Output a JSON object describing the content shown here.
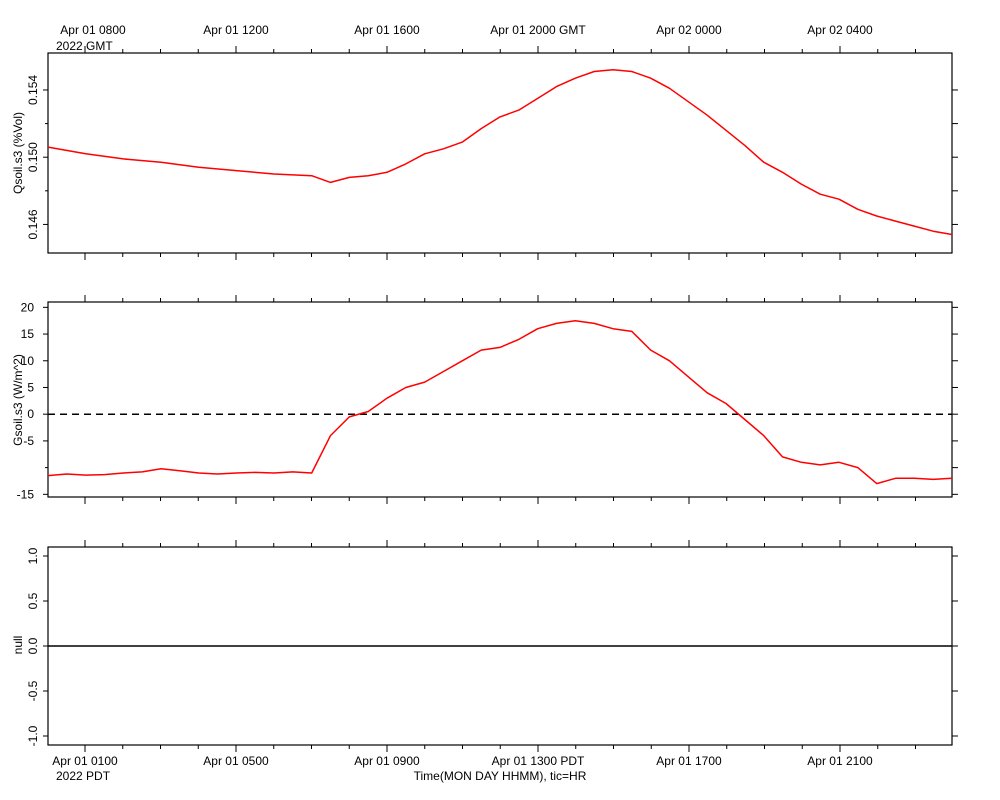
{
  "top_axis": {
    "tick_labels": [
      "Apr 01 0800",
      "Apr 01 1200",
      "Apr 01 1600",
      "Apr 01 2000 GMT",
      "Apr 02 0000",
      "Apr 02 0400"
    ],
    "year_label": "2022 GMT"
  },
  "bottom_axis": {
    "tick_labels": [
      "Apr 01 0100",
      "Apr 01 0500",
      "Apr 01 0900",
      "Apr 01 1300 PDT",
      "Apr 01 1700",
      "Apr 01 2100"
    ],
    "year_label": "2022 PDT",
    "title": "Time(MON DAY HHMM), tic=HR"
  },
  "colors": {
    "series": "#ff0000",
    "axis": "#000000"
  },
  "chart_data": [
    {
      "type": "line",
      "ylabel": "Qsoil.s3 (%Vol)",
      "ylim": [
        0.1443,
        0.1562
      ],
      "yticks": [
        0.146,
        0.15,
        0.154
      ],
      "ytick_labels": [
        "0.146",
        "0.150",
        "0.154"
      ],
      "xlim": [
        0,
        24
      ],
      "x_unit": "hours since Apr 01 0000 PDT",
      "series": [
        {
          "x": [
            0,
            1,
            2,
            3,
            4,
            5,
            6,
            7,
            7.5,
            8,
            8.5,
            9,
            9.5,
            10,
            10.5,
            11,
            11.5,
            12,
            12.5,
            13,
            13.5,
            14,
            14.5,
            15,
            15.5,
            16,
            16.5,
            17,
            17.5,
            18,
            18.5,
            19,
            19.5,
            20,
            20.5,
            21,
            21.5,
            22,
            22.5,
            23,
            23.5,
            24
          ],
          "values": [
            0.1506,
            0.1502,
            0.1499,
            0.1497,
            0.1494,
            0.1492,
            0.149,
            0.1489,
            0.1485,
            0.1488,
            0.1489,
            0.1491,
            0.1496,
            0.1502,
            0.1505,
            0.1509,
            0.1517,
            0.1524,
            0.1528,
            0.1535,
            0.1542,
            0.1547,
            0.1551,
            0.1552,
            0.1551,
            0.1547,
            0.1541,
            0.1533,
            0.1525,
            0.1516,
            0.1507,
            0.1497,
            0.1491,
            0.1484,
            0.1478,
            0.1475,
            0.1469,
            0.1465,
            0.1462,
            0.1459,
            0.1456,
            0.1454
          ]
        }
      ]
    },
    {
      "type": "line",
      "ylabel": "Gsoil.s3 (W/m^2)",
      "ylim": [
        -15.5,
        21
      ],
      "yticks": [
        20,
        15,
        10,
        5,
        0,
        -5,
        -15
      ],
      "ytick_labels": [
        "20",
        "15",
        "10",
        "5",
        "0",
        "-5",
        "-15"
      ],
      "zero_line": "dashed",
      "xlim": [
        0,
        24
      ],
      "x_unit": "hours since Apr 01 0000 PDT",
      "series": [
        {
          "x": [
            0,
            0.5,
            1,
            1.5,
            2,
            2.5,
            3,
            3.5,
            4,
            4.5,
            5,
            5.5,
            6,
            6.5,
            7,
            7.5,
            8,
            8.5,
            9,
            9.5,
            10,
            10.5,
            11,
            11.5,
            12,
            12.5,
            13,
            13.5,
            14,
            14.5,
            15,
            15.5,
            16,
            16.5,
            17,
            17.5,
            18,
            18.5,
            19,
            19.5,
            20,
            20.5,
            21,
            21.5,
            22,
            22.5,
            23,
            23.5,
            24
          ],
          "values": [
            -11.5,
            -11.2,
            -11.4,
            -11.3,
            -11.0,
            -10.8,
            -10.2,
            -10.6,
            -11.0,
            -11.2,
            -11.0,
            -10.9,
            -11.0,
            -10.8,
            -11.0,
            -4,
            -0.5,
            0.5,
            3,
            5,
            6,
            8,
            10,
            12,
            12.5,
            14,
            16,
            17,
            17.5,
            17,
            16,
            15.5,
            12,
            10,
            7,
            4,
            2,
            -1,
            -4,
            -8,
            -9,
            -9.5,
            -9,
            -10,
            -13,
            -12,
            -12,
            -12.2,
            -12
          ]
        }
      ]
    },
    {
      "type": "line",
      "ylabel": "null",
      "ylim": [
        -1.1,
        1.1
      ],
      "yticks": [
        1.0,
        0.5,
        0.0,
        -0.5,
        -1.0
      ],
      "ytick_labels": [
        "1.0",
        "0.5",
        "0.0",
        "-0.5",
        "-1.0"
      ],
      "xlim": [
        0,
        24
      ],
      "x_unit": "hours since Apr 01 0000 PDT",
      "series": [
        {
          "x": [
            0,
            24
          ],
          "values": [
            0,
            0
          ]
        }
      ]
    }
  ]
}
